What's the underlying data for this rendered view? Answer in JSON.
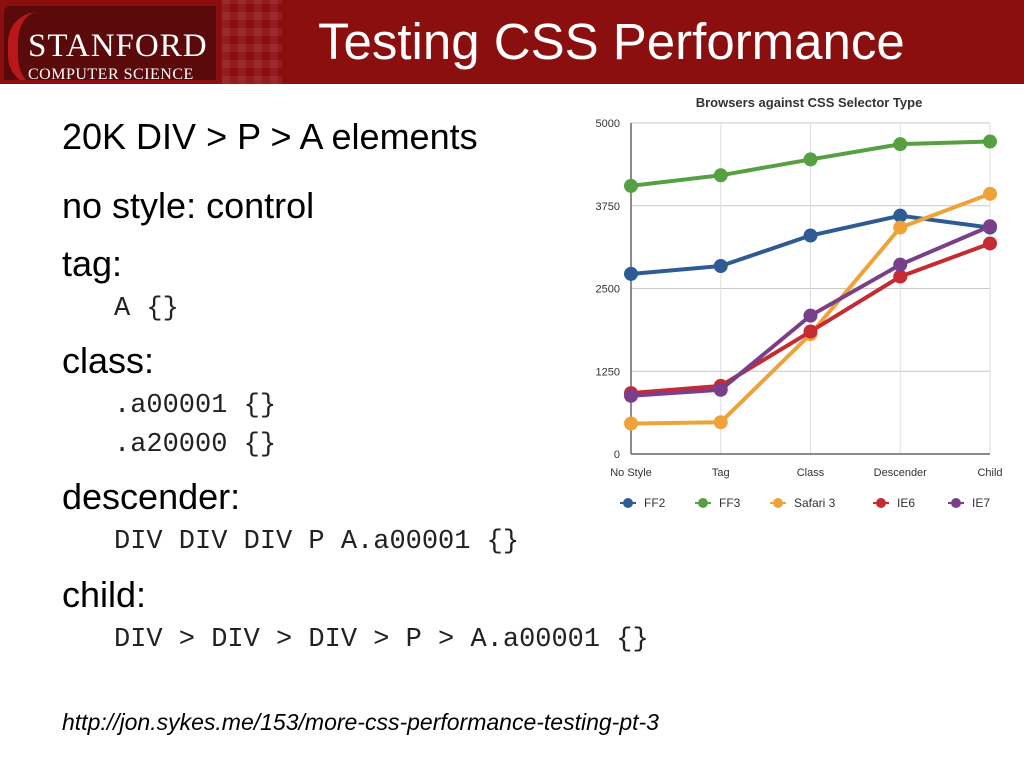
{
  "slide": {
    "logo_line1": "STANFORD",
    "logo_line2": "COMPUTER SCIENCE",
    "title": "Testing CSS Performance"
  },
  "content": {
    "line1": "20K DIV > P > A elements",
    "line2": "no style: control",
    "tag_label": "tag:",
    "tag_code": "A {}",
    "class_label": "class:",
    "class_code1": ".a00001 {}",
    "class_code2": ".a20000 {}",
    "descender_label": "descender:",
    "descender_code": "DIV DIV DIV P A.a00001 {}",
    "child_label": "child:",
    "child_code": "DIV > DIV > DIV > P > A.a00001 {}",
    "url": "http://jon.sykes.me/153/more-css-performance-testing-pt-3"
  },
  "chart_data": {
    "type": "line",
    "title": "Browsers against CSS Selector Type",
    "categories": [
      "No Style",
      "Tag",
      "Class",
      "Descender",
      "Child"
    ],
    "ylim": [
      0,
      5000
    ],
    "yticks": [
      "0",
      "1250",
      "2500",
      "3750",
      "5000"
    ],
    "grid": true,
    "legend_position": "bottom",
    "series": [
      {
        "name": "FF2",
        "color": "#2e5b93",
        "values": [
          2720,
          2840,
          3300,
          3600,
          3420
        ]
      },
      {
        "name": "FF3",
        "color": "#56a043",
        "values": [
          4050,
          4210,
          4450,
          4680,
          4720
        ]
      },
      {
        "name": "Safari 3",
        "color": "#eea33a",
        "values": [
          460,
          480,
          1810,
          3420,
          3930
        ]
      },
      {
        "name": "IE6",
        "color": "#c42b32",
        "values": [
          920,
          1030,
          1850,
          2680,
          3180
        ]
      },
      {
        "name": "IE7",
        "color": "#7a3f8a",
        "values": [
          880,
          970,
          2090,
          2860,
          3440
        ]
      }
    ]
  }
}
